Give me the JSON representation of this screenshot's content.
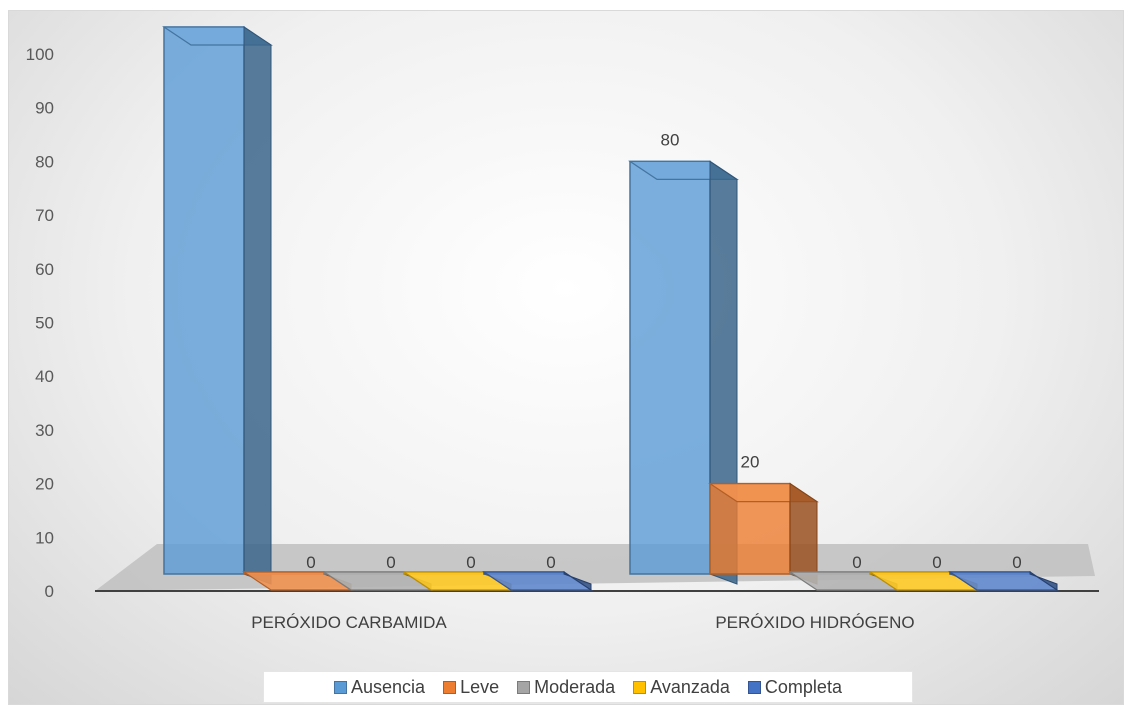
{
  "chart_data": {
    "type": "bar",
    "variant": "3d-clustered-column",
    "title": "",
    "xlabel": "",
    "ylabel": "",
    "ylim": [
      0,
      100
    ],
    "yticks": [
      0,
      10,
      20,
      30,
      40,
      50,
      60,
      70,
      80,
      90,
      100
    ],
    "categories": [
      "PERÓXIDO CARBAMIDA",
      "PERÓXIDO HIDRÓGENO"
    ],
    "series": [
      {
        "name": "Ausencia",
        "color": "#5B9BD5",
        "values": [
          100,
          80
        ]
      },
      {
        "name": "Leve",
        "color": "#ED7D31",
        "values": [
          0,
          20
        ]
      },
      {
        "name": "Moderada",
        "color": "#A5A5A5",
        "values": [
          0,
          0
        ]
      },
      {
        "name": "Avanzada",
        "color": "#FFC000",
        "values": [
          0,
          0
        ]
      },
      {
        "name": "Completa",
        "color": "#4472C4",
        "values": [
          0,
          0
        ]
      }
    ],
    "data_labels": true,
    "grid": false,
    "legend_position": "bottom"
  }
}
